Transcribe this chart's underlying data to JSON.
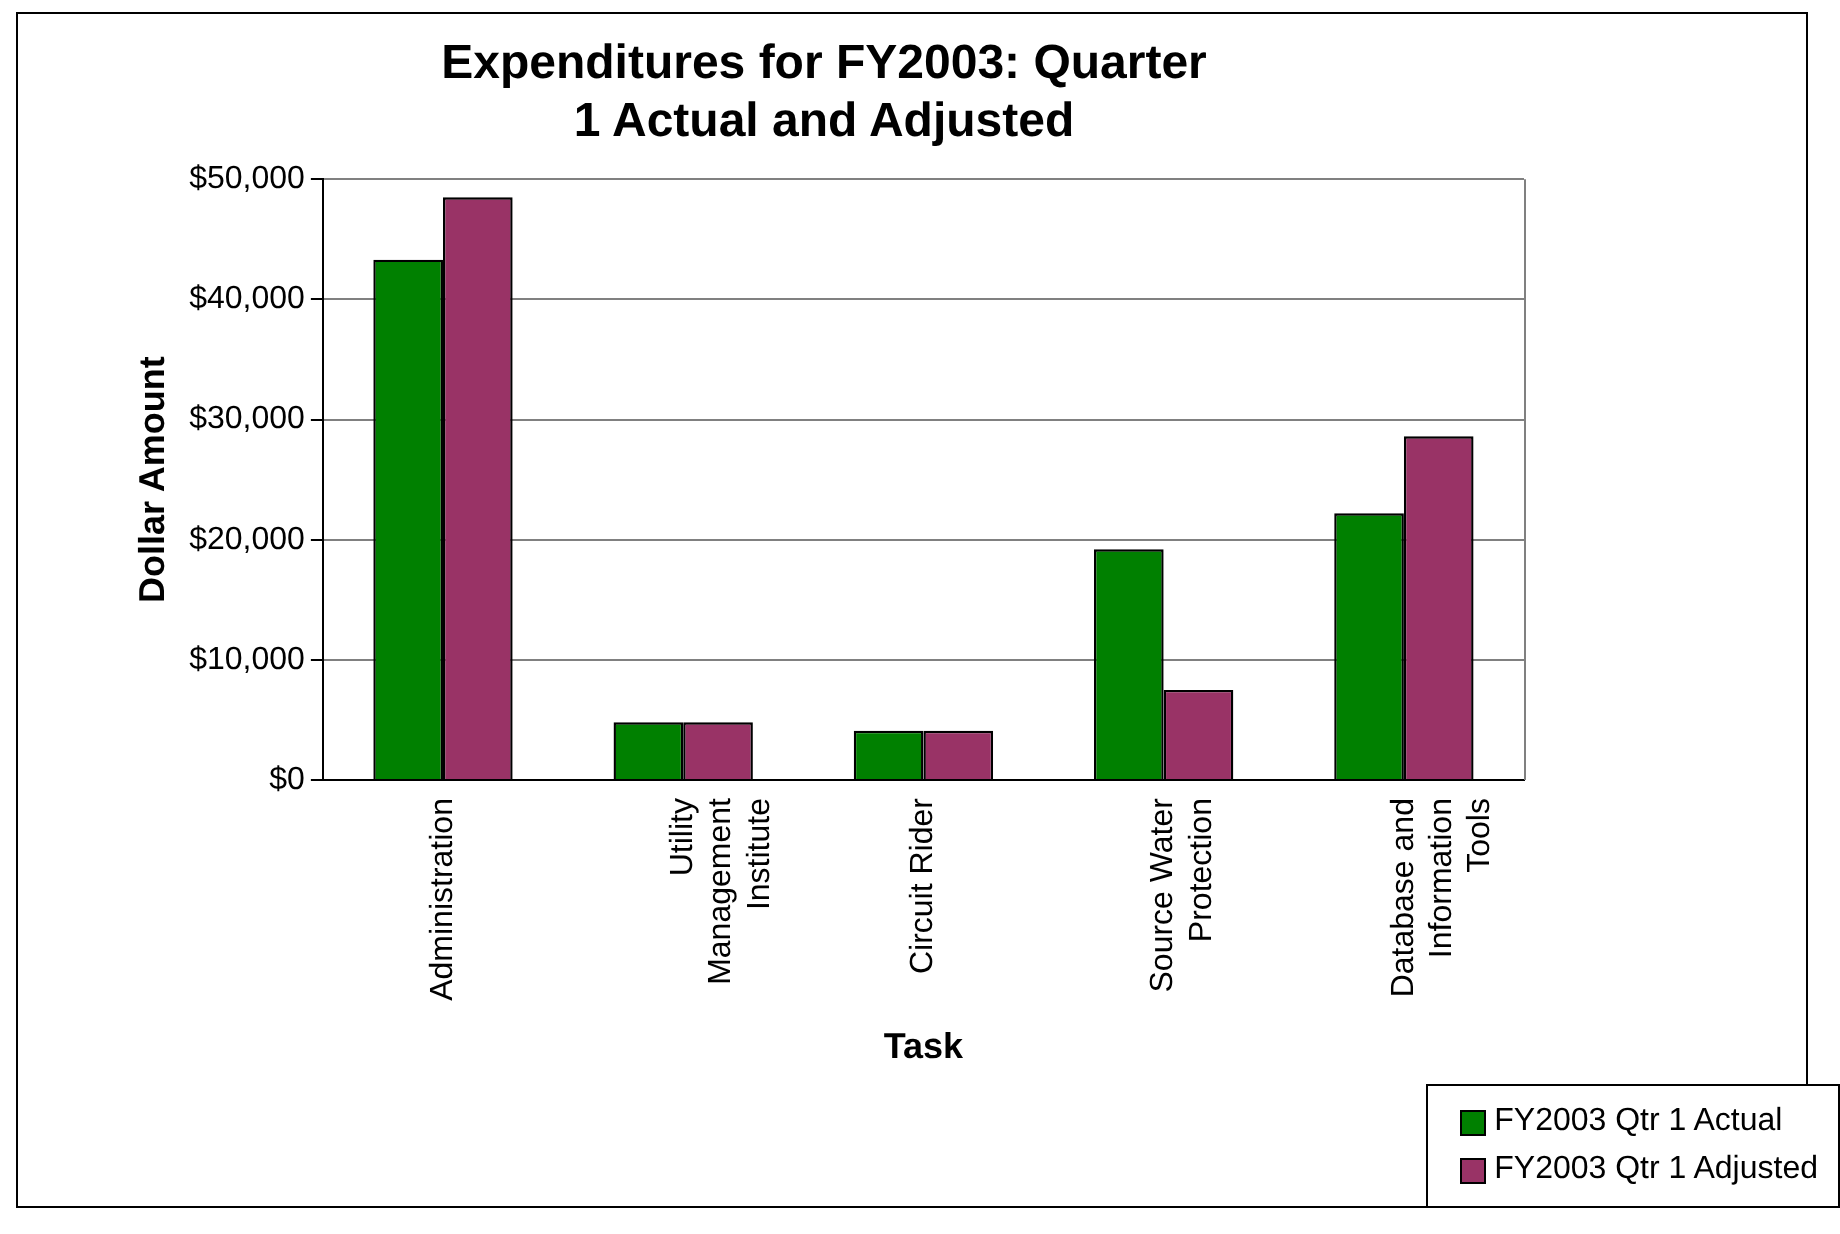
{
  "chart_data": {
    "type": "bar",
    "title": "Expenditures for FY2003: Quarter 1 Actual and Adjusted",
    "xlabel": "Task",
    "ylabel": "Dollar Amount",
    "categories": [
      "Administration",
      "Utility Management Institute",
      "Circuit Rider",
      "Source Water Protection",
      "Database and Information Tools"
    ],
    "series": [
      {
        "name": "FY2003 Qtr 1 Actual",
        "color": "#008000",
        "values": [
          43300,
          4800,
          4100,
          19200,
          22200
        ]
      },
      {
        "name": "FY2003 Qtr 1 Adjusted",
        "color": "#993366",
        "values": [
          48500,
          4800,
          4100,
          7500,
          28600
        ]
      }
    ],
    "ylim": [
      0,
      50000
    ],
    "yticks": [
      {
        "value": 0,
        "label": "$0"
      },
      {
        "value": 10000,
        "label": "$10,000"
      },
      {
        "value": 20000,
        "label": "$20,000"
      },
      {
        "value": 30000,
        "label": "$30,000"
      },
      {
        "value": 40000,
        "label": "$40,000"
      },
      {
        "value": 50000,
        "label": "$50,000"
      }
    ],
    "grid": "y",
    "legend": "bottom right"
  }
}
